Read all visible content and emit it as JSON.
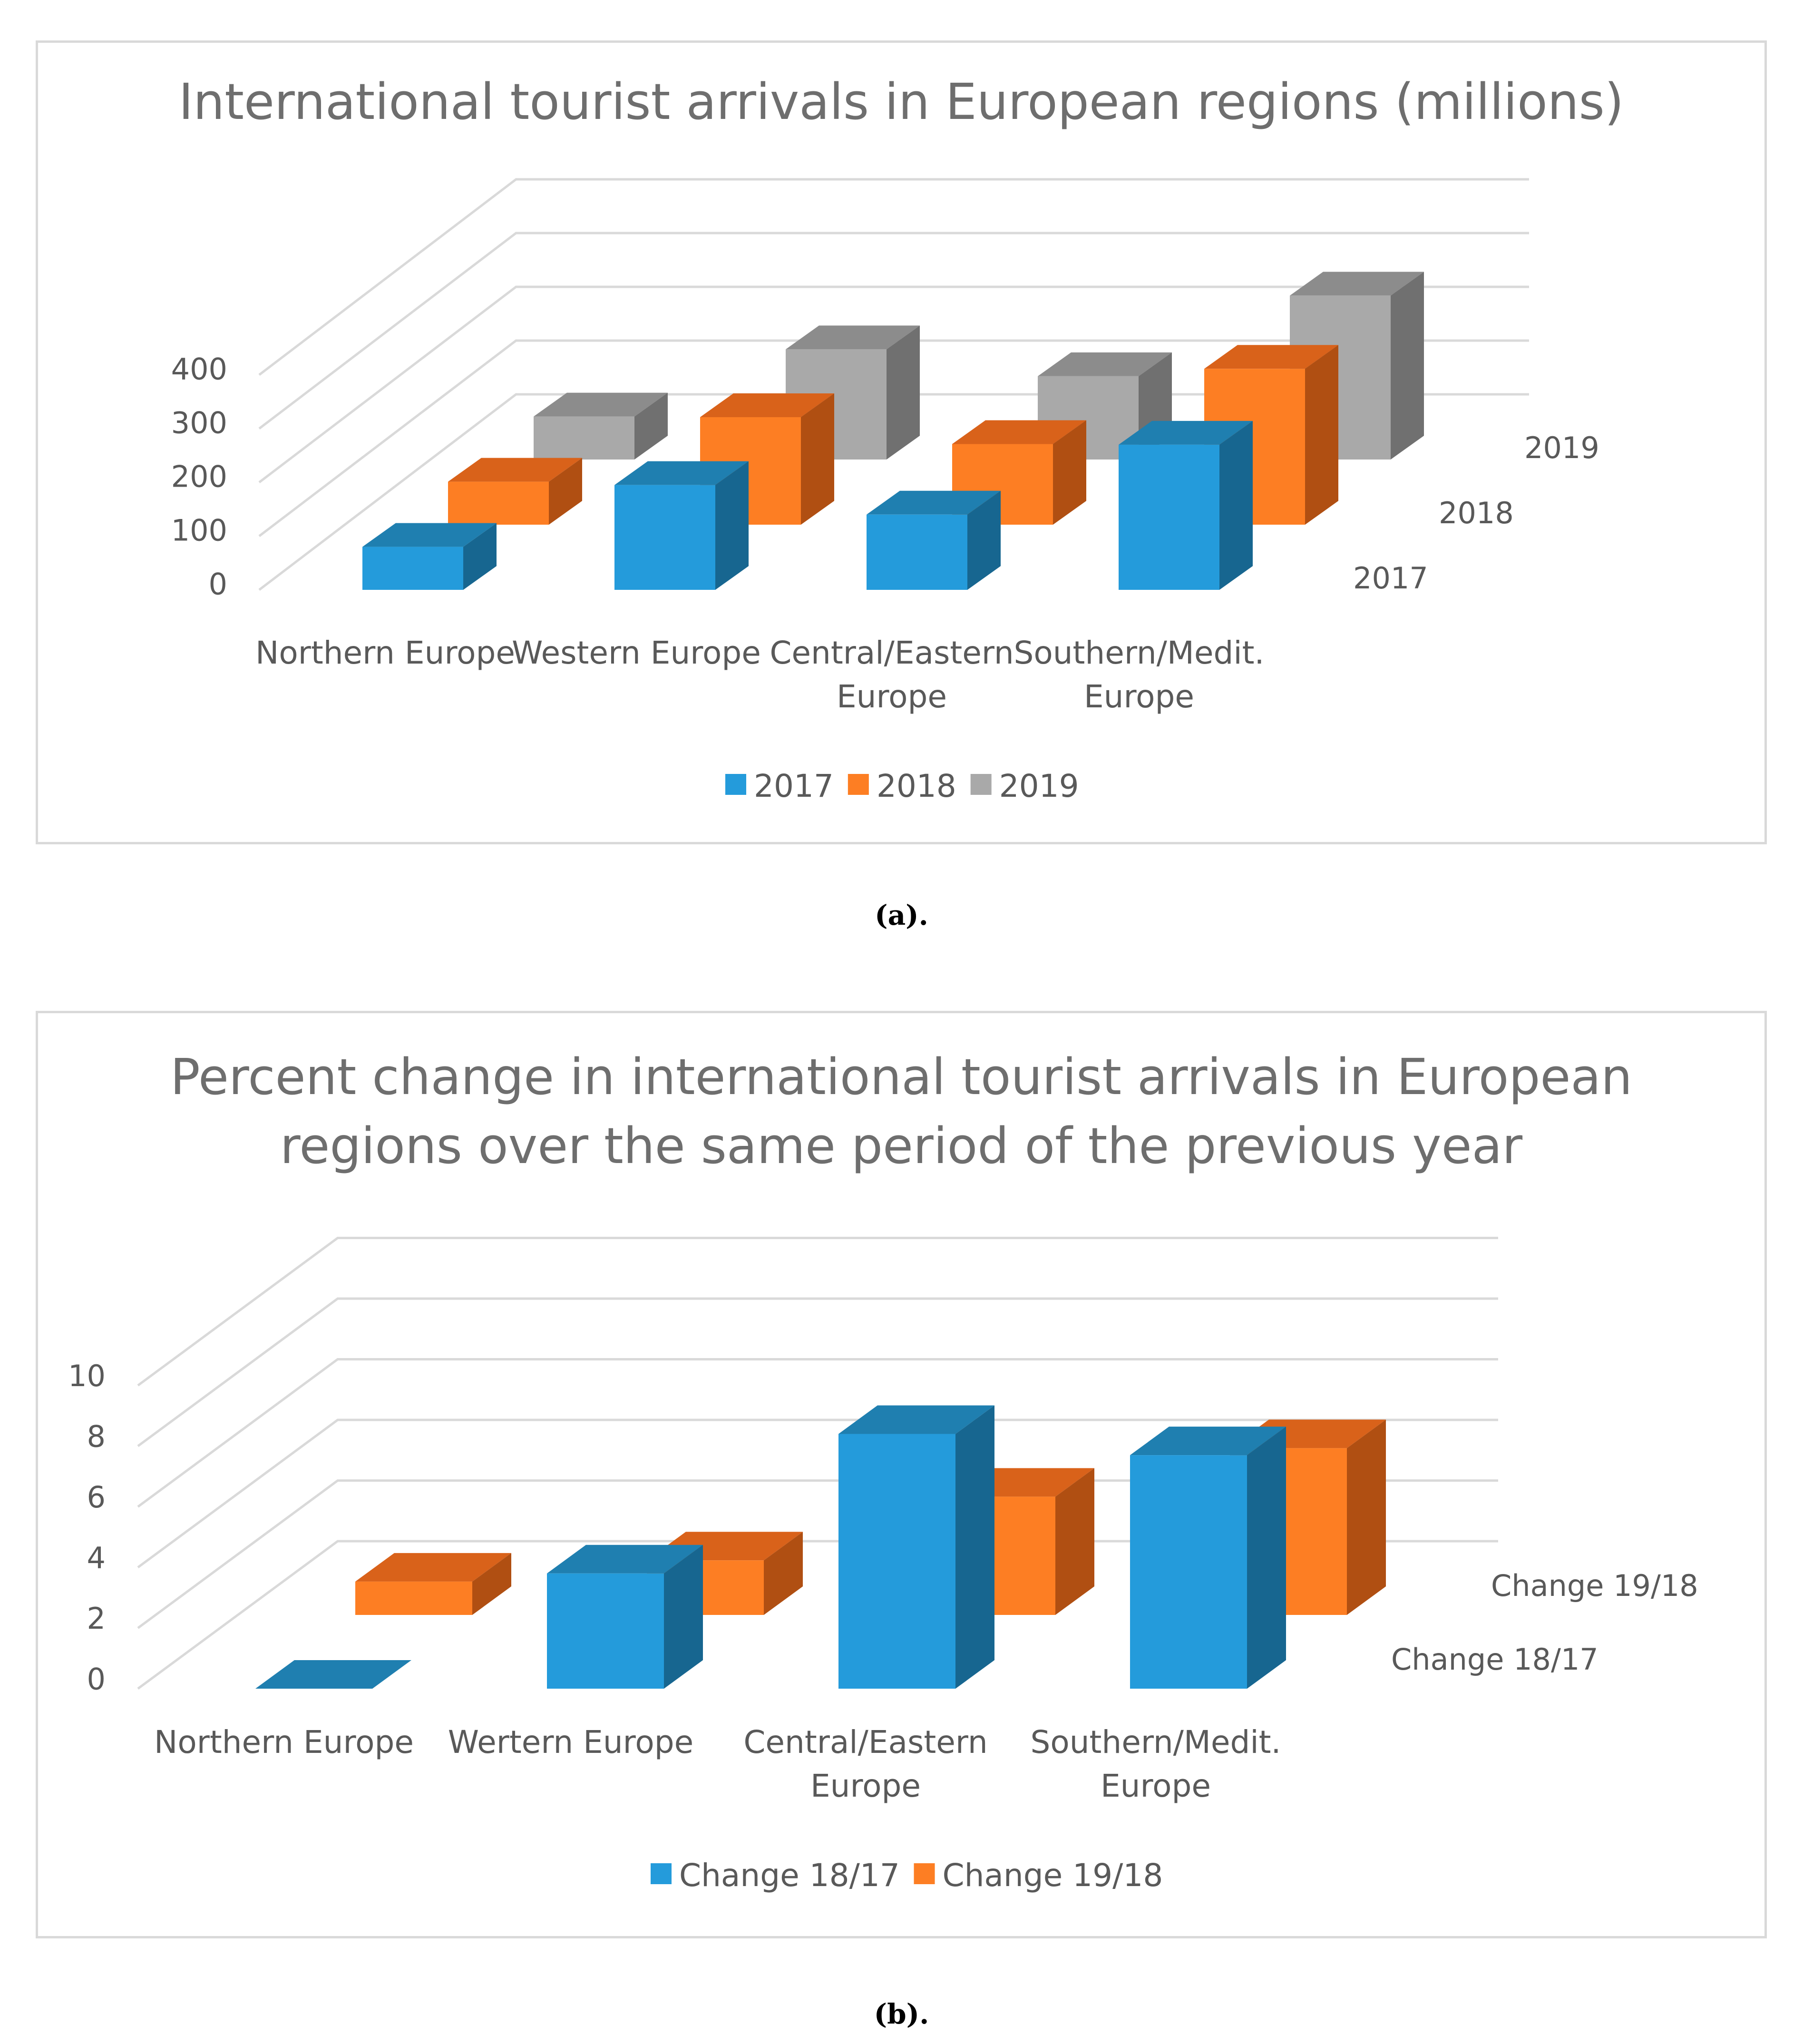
{
  "chart_data": [
    {
      "type": "bar",
      "style": "3d-clustered-depth",
      "title": "International tourist arrivals in European regions (millions)",
      "categories": [
        "Northern Europe",
        "Western Europe",
        "Central/Eastern Europe",
        "Southern/Medit. Europe"
      ],
      "category_lines": [
        [
          "Northern Europe"
        ],
        [
          "Western Europe"
        ],
        [
          "Central/Eastern",
          "Europe"
        ],
        [
          "Southern/Medit.",
          "Europe"
        ]
      ],
      "series": [
        {
          "name": "2017",
          "values": [
            80,
            195,
            140,
            270
          ]
        },
        {
          "name": "2018",
          "values": [
            80,
            200,
            150,
            290
          ]
        },
        {
          "name": "2019",
          "values": [
            80,
            205,
            155,
            305
          ]
        }
      ],
      "depth_labels": [
        "2017",
        "2018",
        "2019"
      ],
      "yticks": [
        "0",
        "100",
        "200",
        "300",
        "400"
      ],
      "ylim": [
        0,
        400
      ],
      "legend": [
        "2017",
        "2018",
        "2019"
      ],
      "legend_position": "bottom",
      "xlabel": "",
      "ylabel": ""
    },
    {
      "type": "bar",
      "style": "3d-clustered-depth",
      "title": "Percent change in international tourist arrivals in European regions over the same period of the previous year",
      "title_lines": [
        "Percent change in international tourist arrivals in European",
        "regions over the same period of the previous year"
      ],
      "categories": [
        "Northern Europe",
        "Wertern Europe",
        "Central/Eastern Europe",
        "Southern/Medit. Europe"
      ],
      "category_lines": [
        [
          "Northern Europe"
        ],
        [
          "Wertern Europe"
        ],
        [
          "Central/Eastern",
          "Europe"
        ],
        [
          "Southern/Medit.",
          "Europe"
        ]
      ],
      "series": [
        {
          "name": "Change 18/17",
          "values": [
            0,
            3.8,
            8.4,
            7.7
          ]
        },
        {
          "name": "Change 19/18",
          "values": [
            1.1,
            1.8,
            3.9,
            5.5
          ]
        }
      ],
      "depth_labels": [
        "Change 18/17",
        "Change 19/18"
      ],
      "yticks": [
        "0",
        "2",
        "4",
        "6",
        "8",
        "10"
      ],
      "ylim": [
        0,
        10
      ],
      "legend": [
        "Change 18/17",
        "Change 19/18"
      ],
      "legend_position": "bottom",
      "xlabel": "",
      "ylabel": ""
    }
  ],
  "colors": {
    "blue": "#249bdb",
    "blue_top": "#1f7fb0",
    "blue_side": "#176690",
    "orange": "#fd7e23",
    "orange_top": "#d9621a",
    "orange_side": "#b04f12",
    "gray": "#a9a9a9",
    "gray_top": "#8c8c8c",
    "gray_side": "#707070",
    "grid": "#d9d9d9",
    "text": "#595959",
    "title": "#6e6e6e"
  },
  "captions": [
    "(a).",
    "(b)."
  ]
}
